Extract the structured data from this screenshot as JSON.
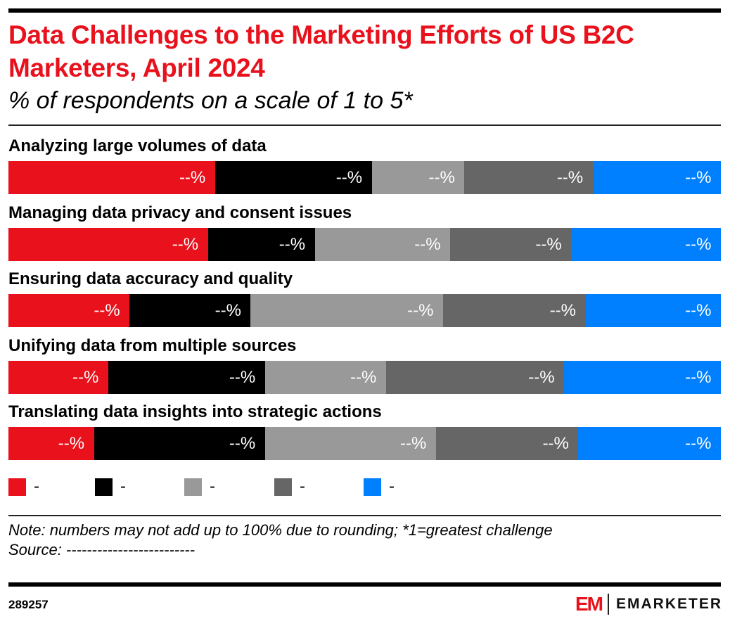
{
  "title": "Data Challenges to the Marketing Efforts of US B2C Marketers, April 2024",
  "subtitle": "% of respondents on a scale of 1 to 5*",
  "chart_data": {
    "type": "bar",
    "orientation": "horizontal",
    "stacked": true,
    "categories": [
      "Analyzing large volumes of data",
      "Managing data privacy and consent issues",
      "Ensuring data accuracy and quality",
      "Unifying data from multiple sources",
      "Translating data insights into strategic actions"
    ],
    "series": [
      {
        "name": "-",
        "color": "#e8111c",
        "values": [
          29,
          28,
          17,
          14,
          12
        ]
      },
      {
        "name": "-",
        "color": "#000000",
        "values": [
          22,
          15,
          17,
          22,
          24
        ]
      },
      {
        "name": "-",
        "color": "#999999",
        "values": [
          13,
          19,
          27,
          17,
          24
        ]
      },
      {
        "name": "-",
        "color": "#666666",
        "values": [
          18,
          17,
          20,
          25,
          20
        ]
      },
      {
        "name": "-",
        "color": "#0080ff",
        "values": [
          18,
          21,
          19,
          22,
          20
        ]
      }
    ],
    "data_label": "--%",
    "xlim": [
      0,
      100
    ],
    "legend": "bottom"
  },
  "note": "Note: numbers may not add up to 100% due to rounding; *1=greatest challenge",
  "source": "Source: -------------------------",
  "chart_id": "289257",
  "logo": {
    "mark": "EM",
    "brand": "EMARKETER"
  }
}
